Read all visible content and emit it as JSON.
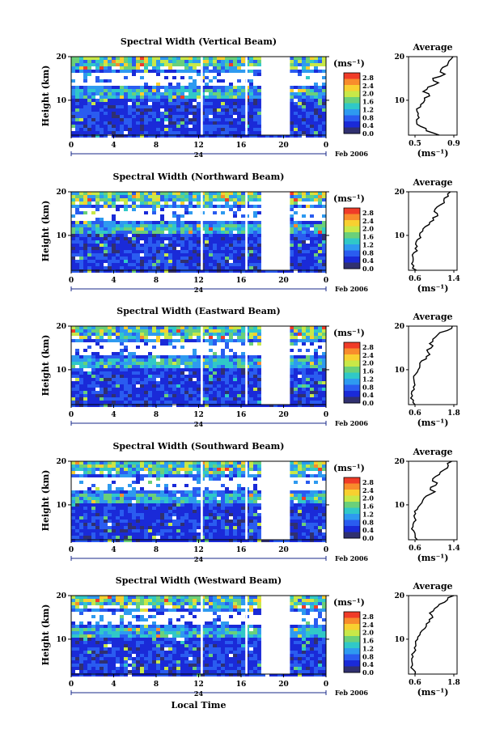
{
  "chart_data": [
    {
      "type": "heatmap",
      "title": "Spectral Width (Vertical Beam)",
      "ylabel": "Height (km)",
      "xticks": [
        "0",
        "4",
        "8",
        "12",
        "16",
        "20",
        "0"
      ],
      "yticks": [
        "20",
        "10"
      ],
      "date_label": "24",
      "date_suffix": "Feb 2006",
      "ylim": [
        2,
        20
      ],
      "xlim": [
        0,
        24
      ],
      "colorbar": {
        "unit": "(ms⁻¹)",
        "ticks": [
          "2.8",
          "2.4",
          "2.0",
          "1.6",
          "1.2",
          "0.8",
          "0.4",
          "0.0"
        ]
      },
      "gaps_hours": [
        [
          12.2,
          12.4
        ],
        [
          16.4,
          16.6
        ],
        [
          17.9,
          20.6
        ]
      ],
      "average_profile": {
        "title": "Average",
        "xlabel": "(ms⁻¹)",
        "xticks": [
          "0.5",
          "0.9"
        ],
        "xlim": [
          0.4,
          1.0
        ],
        "yticks": [
          "20",
          "10"
        ],
        "heights": [
          2,
          3,
          4,
          5,
          6,
          7,
          8,
          9,
          10,
          11,
          12,
          13,
          14,
          15,
          16,
          17,
          18,
          19,
          20
        ],
        "values": [
          0.78,
          0.62,
          0.55,
          0.5,
          0.53,
          0.52,
          0.5,
          0.55,
          0.6,
          0.66,
          0.58,
          0.64,
          0.77,
          0.7,
          0.85,
          0.8,
          0.88,
          0.9,
          0.95
        ]
      }
    },
    {
      "type": "heatmap",
      "title": "Spectral Width (Northward Beam)",
      "ylabel": "Height (km)",
      "xticks": [
        "0",
        "4",
        "8",
        "12",
        "16",
        "20",
        "0"
      ],
      "yticks": [
        "20",
        "10"
      ],
      "date_label": "24",
      "date_suffix": "Feb 2006",
      "ylim": [
        2,
        20
      ],
      "xlim": [
        0,
        24
      ],
      "colorbar": {
        "unit": "(ms⁻¹)",
        "ticks": [
          "2.8",
          "2.4",
          "2.0",
          "1.6",
          "1.2",
          "0.8",
          "0.4",
          "0.0"
        ]
      },
      "gaps_hours": [
        [
          12.2,
          12.4
        ],
        [
          16.4,
          16.6
        ],
        [
          17.9,
          20.6
        ]
      ],
      "average_profile": {
        "title": "Average",
        "xlabel": "(ms⁻¹)",
        "xticks": [
          "0.6",
          "1.4"
        ],
        "xlim": [
          0.4,
          1.5
        ],
        "yticks": [
          "20",
          "10"
        ],
        "heights": [
          2,
          3,
          4,
          5,
          6,
          7,
          8,
          9,
          10,
          11,
          12,
          13,
          14,
          15,
          16,
          17,
          18,
          19,
          20
        ],
        "values": [
          0.58,
          0.52,
          0.5,
          0.5,
          0.52,
          0.55,
          0.56,
          0.6,
          0.65,
          0.72,
          0.78,
          0.88,
          0.95,
          1.05,
          1.0,
          1.12,
          1.2,
          1.3,
          1.35
        ]
      }
    },
    {
      "type": "heatmap",
      "title": "Spectral Width (Eastward Beam)",
      "ylabel": "Height (km)",
      "xticks": [
        "0",
        "4",
        "8",
        "12",
        "16",
        "20",
        "0"
      ],
      "yticks": [
        "20",
        "10"
      ],
      "date_label": "24",
      "date_suffix": "Feb 2006",
      "ylim": [
        2,
        20
      ],
      "xlim": [
        0,
        24
      ],
      "colorbar": {
        "unit": "(ms⁻¹)",
        "ticks": [
          "2.8",
          "2.4",
          "2.0",
          "1.6",
          "1.2",
          "0.8",
          "0.4",
          "0.0"
        ]
      },
      "gaps_hours": [
        [
          12.2,
          12.4
        ],
        [
          16.4,
          16.6
        ],
        [
          17.9,
          20.6
        ]
      ],
      "average_profile": {
        "title": "Average",
        "xlabel": "(ms⁻¹)",
        "xticks": [
          "0.6",
          "1.8"
        ],
        "xlim": [
          0.4,
          1.9
        ],
        "yticks": [
          "20",
          "10"
        ],
        "heights": [
          2,
          3,
          4,
          5,
          6,
          7,
          8,
          9,
          10,
          11,
          12,
          13,
          14,
          15,
          16,
          17,
          18,
          19,
          20
        ],
        "values": [
          0.6,
          0.55,
          0.52,
          0.5,
          0.55,
          0.58,
          0.56,
          0.62,
          0.7,
          0.75,
          0.8,
          0.95,
          1.0,
          1.1,
          1.05,
          1.15,
          1.3,
          1.6,
          1.75
        ]
      }
    },
    {
      "type": "heatmap",
      "title": "Spectral Width (Southward Beam)",
      "ylabel": "Height (km)",
      "xticks": [
        "0",
        "4",
        "8",
        "12",
        "16",
        "20",
        "0"
      ],
      "yticks": [
        "20",
        "10"
      ],
      "date_label": "24",
      "date_suffix": "Feb 2006",
      "ylim": [
        2,
        20
      ],
      "xlim": [
        0,
        24
      ],
      "colorbar": {
        "unit": "(ms⁻¹)",
        "ticks": [
          "2.8",
          "2.4",
          "2.0",
          "1.6",
          "1.2",
          "0.8",
          "0.4",
          "0.0"
        ]
      },
      "gaps_hours": [
        [
          12.2,
          12.4
        ],
        [
          16.4,
          16.6
        ],
        [
          17.9,
          20.6
        ]
      ],
      "average_profile": {
        "title": "Average",
        "xlabel": "(ms⁻¹)",
        "xticks": [
          "0.6",
          "1.4"
        ],
        "xlim": [
          0.4,
          1.5
        ],
        "yticks": [
          "20",
          "10"
        ],
        "heights": [
          2,
          3,
          4,
          5,
          6,
          7,
          8,
          9,
          10,
          11,
          12,
          13,
          14,
          15,
          16,
          17,
          18,
          19,
          20
        ],
        "values": [
          0.6,
          0.55,
          0.52,
          0.5,
          0.52,
          0.54,
          0.56,
          0.6,
          0.66,
          0.72,
          0.8,
          1.0,
          0.9,
          1.05,
          0.95,
          1.1,
          1.2,
          1.3,
          1.38
        ]
      }
    },
    {
      "type": "heatmap",
      "title": "Spectral Width (Westward Beam)",
      "ylabel": "Height (km)",
      "xticks": [
        "0",
        "4",
        "8",
        "12",
        "16",
        "20",
        "0"
      ],
      "yticks": [
        "20",
        "10"
      ],
      "date_label": "24",
      "date_suffix": "Feb 2006",
      "xlabel": "Local Time",
      "ylim": [
        2,
        20
      ],
      "xlim": [
        0,
        24
      ],
      "colorbar": {
        "unit": "(ms⁻¹)",
        "ticks": [
          "2.8",
          "2.4",
          "2.0",
          "1.6",
          "1.2",
          "0.8",
          "0.4",
          "0.0"
        ]
      },
      "gaps_hours": [
        [
          12.2,
          12.4
        ],
        [
          16.4,
          16.6
        ],
        [
          17.9,
          20.6
        ]
      ],
      "average_profile": {
        "title": "Average",
        "xlabel": "(ms⁻¹)",
        "xticks": [
          "0.6",
          "1.8"
        ],
        "xlim": [
          0.4,
          1.9
        ],
        "yticks": [
          "20",
          "10"
        ],
        "heights": [
          2,
          3,
          4,
          5,
          6,
          7,
          8,
          9,
          10,
          11,
          12,
          13,
          14,
          15,
          16,
          17,
          18,
          19,
          20
        ],
        "values": [
          0.6,
          0.55,
          0.52,
          0.5,
          0.54,
          0.57,
          0.58,
          0.62,
          0.68,
          0.75,
          0.82,
          0.95,
          1.05,
          1.15,
          1.05,
          1.2,
          1.35,
          1.6,
          1.8
        ]
      }
    }
  ]
}
